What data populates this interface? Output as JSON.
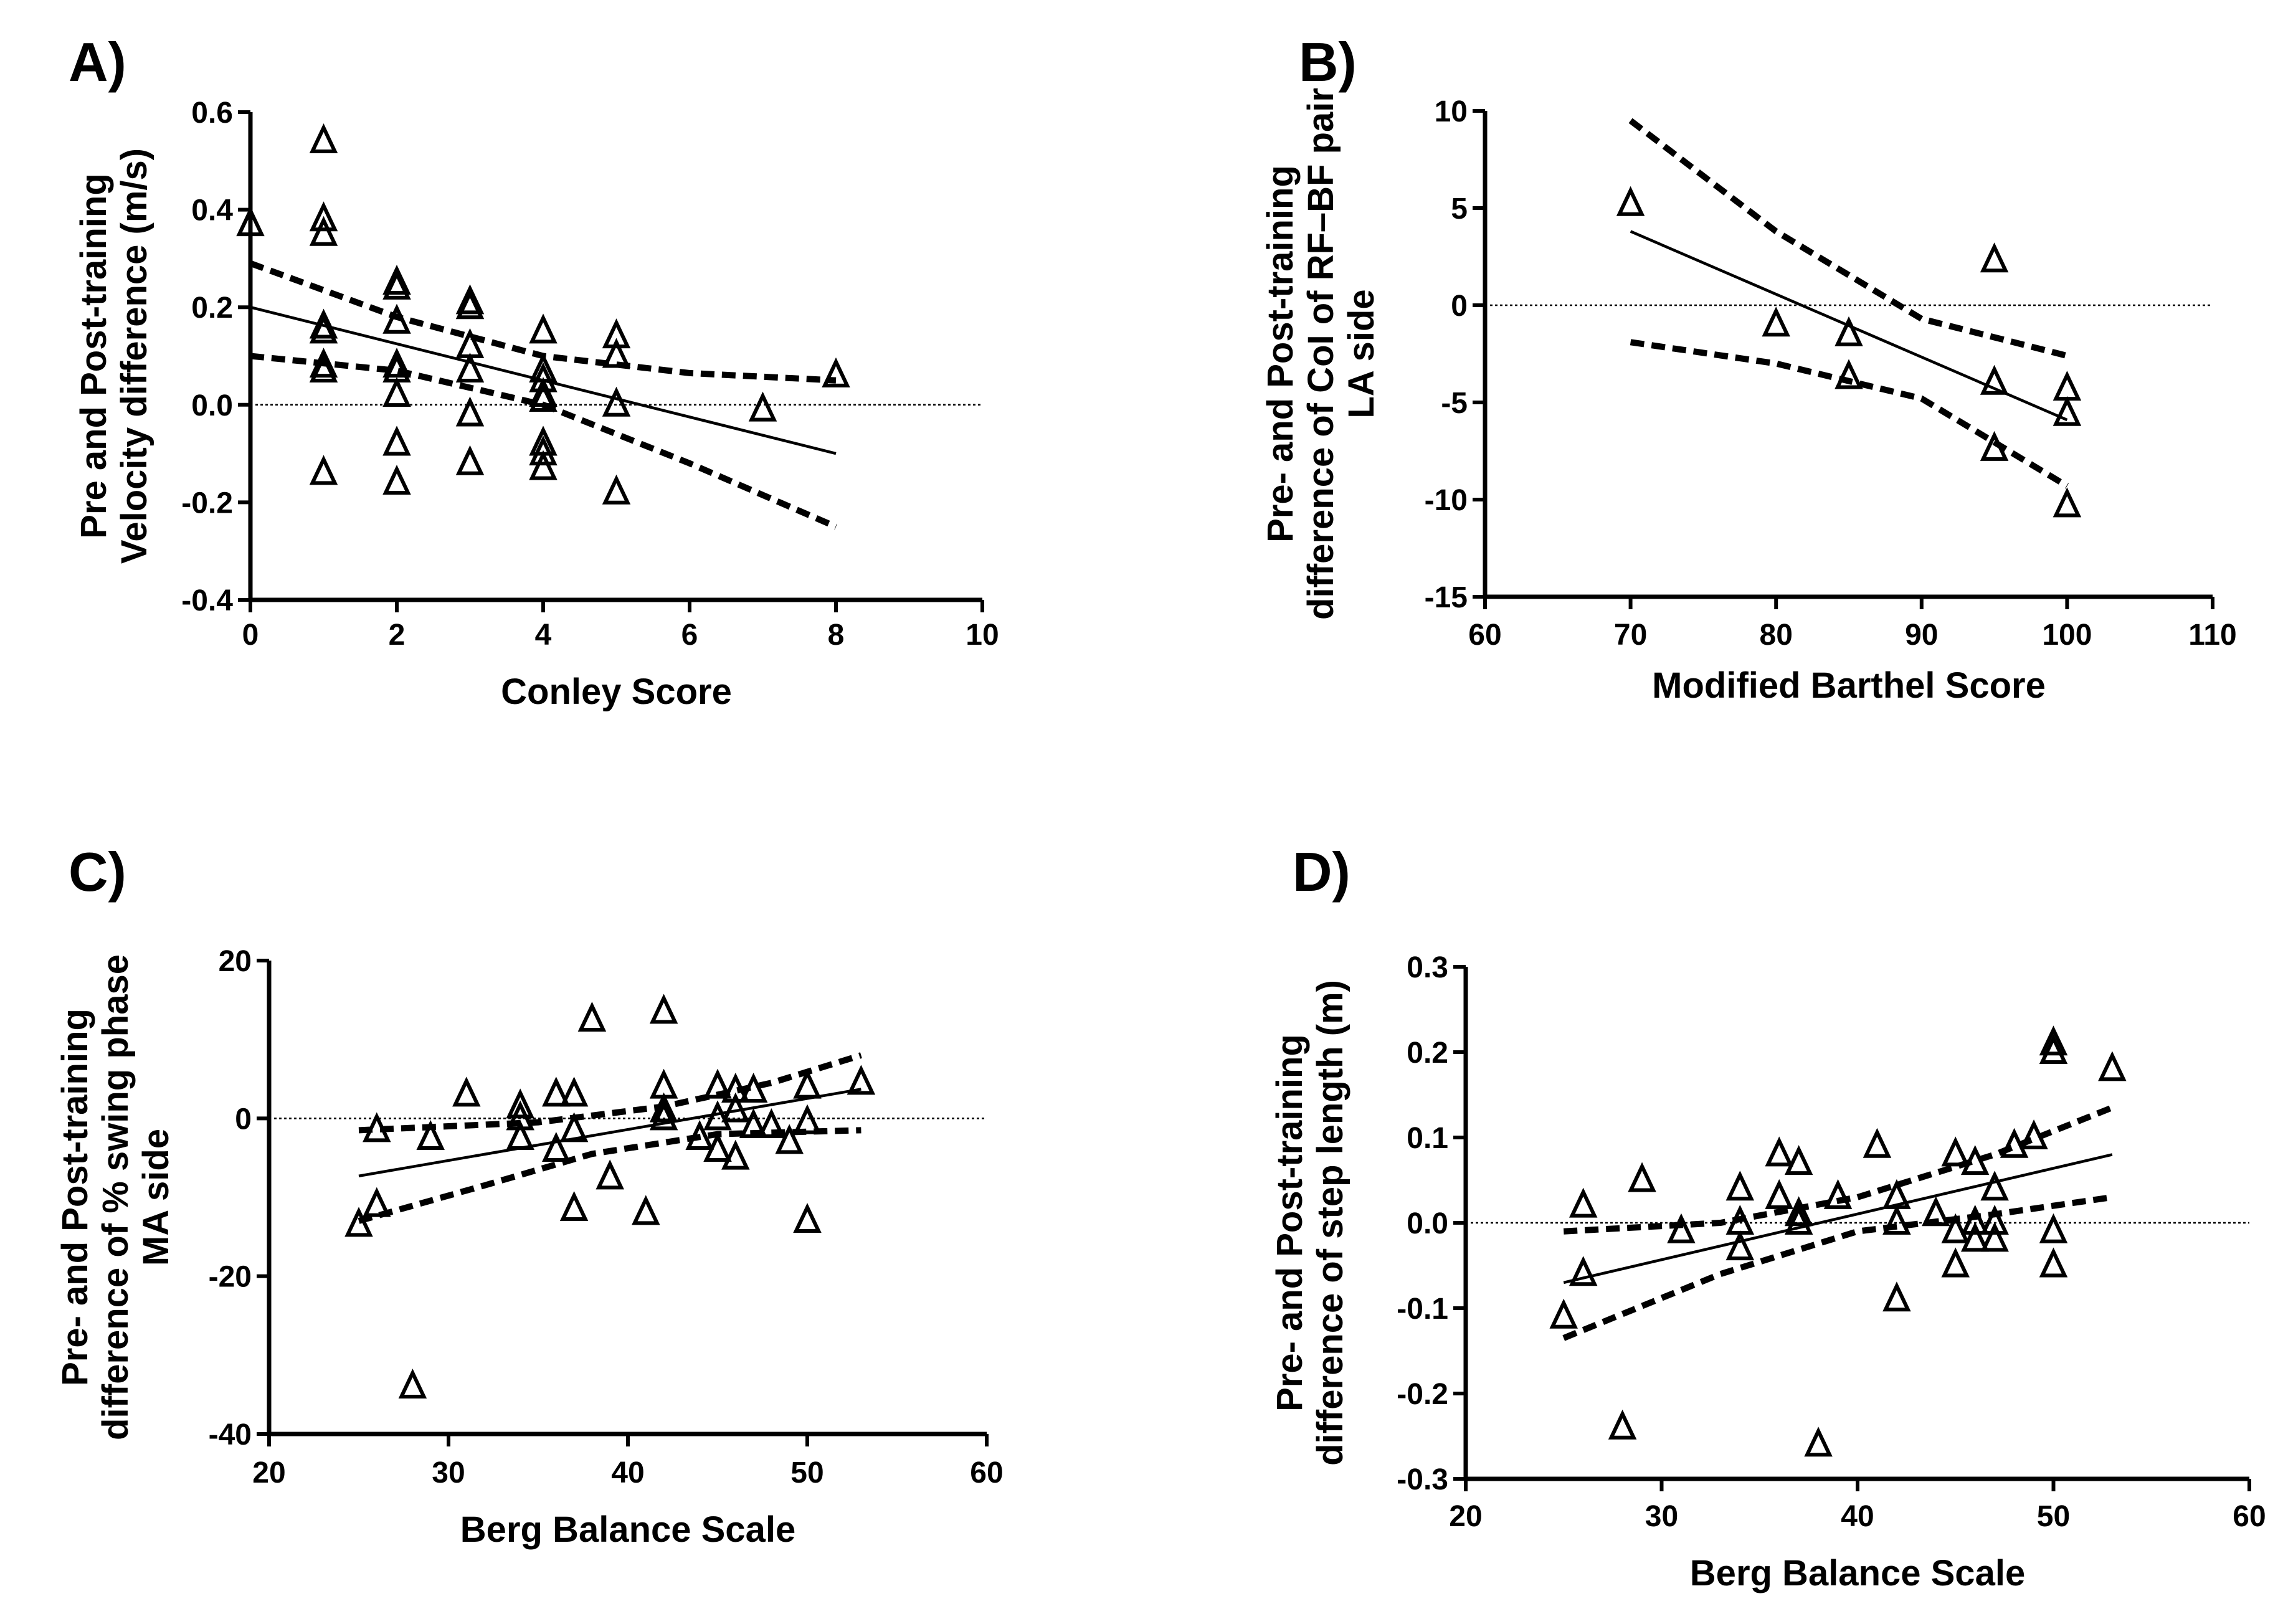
{
  "chart_data": [
    {
      "type": "scatter",
      "panel_label": "A)",
      "xlabel": "Conley Score",
      "ylabel": [
        "Pre and Post-training",
        "Velocity difference (m/s)"
      ],
      "xlim": [
        0,
        10
      ],
      "ylim": [
        -0.4,
        0.6
      ],
      "xticks": [
        0,
        2,
        4,
        6,
        8,
        10
      ],
      "yticks": [
        -0.4,
        -0.2,
        0.0,
        0.2,
        0.4,
        0.6
      ],
      "ytick_labels": [
        "-0.4",
        "-0.2",
        "0.0",
        "0.2",
        "0.4",
        "0.6"
      ],
      "reference_line_y": 0,
      "points": [
        [
          0,
          0.37
        ],
        [
          1,
          0.54
        ],
        [
          1,
          0.38
        ],
        [
          1,
          0.35
        ],
        [
          1,
          0.16
        ],
        [
          1,
          0.15
        ],
        [
          1,
          0.08
        ],
        [
          1,
          0.07
        ],
        [
          1,
          -0.14
        ],
        [
          2,
          0.25
        ],
        [
          2,
          0.24
        ],
        [
          2,
          0.17
        ],
        [
          2,
          0.08
        ],
        [
          2,
          0.07
        ],
        [
          2,
          0.02
        ],
        [
          2,
          -0.08
        ],
        [
          2,
          -0.16
        ],
        [
          3,
          0.21
        ],
        [
          3,
          0.2
        ],
        [
          3,
          0.12
        ],
        [
          3,
          0.07
        ],
        [
          3,
          -0.02
        ],
        [
          3,
          -0.12
        ],
        [
          4,
          0.15
        ],
        [
          4,
          0.07
        ],
        [
          4,
          0.05
        ],
        [
          4,
          0.02
        ],
        [
          4,
          0.01
        ],
        [
          4,
          -0.08
        ],
        [
          4,
          -0.1
        ],
        [
          4,
          -0.13
        ],
        [
          5,
          0.14
        ],
        [
          5,
          0.1
        ],
        [
          5,
          0.0
        ],
        [
          5,
          -0.18
        ],
        [
          7,
          -0.01
        ],
        [
          8,
          0.06
        ]
      ],
      "fit": [
        [
          0,
          0.2
        ],
        [
          8,
          -0.1
        ]
      ],
      "ci_upper": [
        [
          0,
          0.29
        ],
        [
          2,
          0.18
        ],
        [
          4,
          0.1
        ],
        [
          6,
          0.065
        ],
        [
          8,
          0.05
        ]
      ],
      "ci_lower": [
        [
          0,
          0.1
        ],
        [
          2,
          0.07
        ],
        [
          4,
          0.0
        ],
        [
          6,
          -0.12
        ],
        [
          8,
          -0.25
        ]
      ]
    },
    {
      "type": "scatter",
      "panel_label": "B)",
      "xlabel": "Modified Barthel Score",
      "ylabel": [
        "Pre- and Post-training",
        "difference of CoI of RF–BF pair",
        "LA side"
      ],
      "xlim": [
        60,
        110
      ],
      "ylim": [
        -15,
        10
      ],
      "xticks": [
        60,
        70,
        80,
        90,
        100,
        110
      ],
      "yticks": [
        -15,
        -10,
        -5,
        0,
        5,
        10
      ],
      "ytick_labels": [
        "-15",
        "-10",
        "-5",
        "0",
        "5",
        "10"
      ],
      "reference_line_y": 0,
      "points": [
        [
          70,
          5.2
        ],
        [
          80,
          -1.0
        ],
        [
          85,
          -1.5
        ],
        [
          85,
          -3.7
        ],
        [
          95,
          2.3
        ],
        [
          95,
          -4.0
        ],
        [
          95,
          -7.4
        ],
        [
          100,
          -4.3
        ],
        [
          100,
          -5.6
        ],
        [
          100,
          -10.3
        ]
      ],
      "fit": [
        [
          70,
          3.8
        ],
        [
          100,
          -5.9
        ]
      ],
      "ci_upper": [
        [
          70,
          9.5
        ],
        [
          80,
          3.8
        ],
        [
          90,
          -0.7
        ],
        [
          100,
          -2.6
        ]
      ],
      "ci_lower": [
        [
          70,
          -1.9
        ],
        [
          80,
          -3.0
        ],
        [
          90,
          -4.8
        ],
        [
          100,
          -9.3
        ]
      ]
    },
    {
      "type": "scatter",
      "panel_label": "C)",
      "xlabel": "Berg Balance Scale",
      "ylabel": [
        "Pre- and Post-training",
        "difference of % swing phase",
        "MA side"
      ],
      "xlim": [
        20,
        60
      ],
      "ylim": [
        -40,
        20
      ],
      "xticks": [
        20,
        30,
        40,
        50,
        60
      ],
      "yticks": [
        -40,
        -20,
        0,
        20
      ],
      "ytick_labels": [
        "-40",
        "-20",
        "0",
        "20"
      ],
      "reference_line_y": 0,
      "points": [
        [
          25,
          -13.5
        ],
        [
          26,
          -1.5
        ],
        [
          26,
          -11
        ],
        [
          28,
          -34
        ],
        [
          29,
          -2.5
        ],
        [
          31,
          3
        ],
        [
          34,
          1.5
        ],
        [
          34,
          0
        ],
        [
          34,
          -2.5
        ],
        [
          36,
          3
        ],
        [
          36,
          -4
        ],
        [
          37,
          3
        ],
        [
          37,
          -1.5
        ],
        [
          37,
          -11.5
        ],
        [
          38,
          12.5
        ],
        [
          39,
          -7.5
        ],
        [
          41,
          -12
        ],
        [
          42,
          13.5
        ],
        [
          42,
          4
        ],
        [
          42,
          1
        ],
        [
          42,
          0
        ],
        [
          44,
          -2.5
        ],
        [
          45,
          4
        ],
        [
          45,
          0
        ],
        [
          45,
          -4
        ],
        [
          46,
          3.5
        ],
        [
          46,
          1
        ],
        [
          46,
          -5
        ],
        [
          47,
          3.5
        ],
        [
          47,
          -1
        ],
        [
          48,
          -1
        ],
        [
          49,
          -3
        ],
        [
          50,
          4
        ],
        [
          50,
          -0.5
        ],
        [
          50,
          -13
        ],
        [
          53,
          4.5
        ]
      ],
      "fit": [
        [
          25,
          -7.3
        ],
        [
          53,
          3.7
        ]
      ],
      "ci_upper": [
        [
          25,
          -1.5
        ],
        [
          35,
          -0.5
        ],
        [
          42,
          1.5
        ],
        [
          48,
          4.5
        ],
        [
          53,
          8
        ]
      ],
      "ci_lower": [
        [
          25,
          -13
        ],
        [
          32,
          -8.5
        ],
        [
          38,
          -4.5
        ],
        [
          45,
          -2
        ],
        [
          53,
          -1.5
        ]
      ]
    },
    {
      "type": "scatter",
      "panel_label": "D)",
      "xlabel": "Berg Balance Scale",
      "ylabel": [
        "Pre- and Post-training",
        "difference of step length (m)"
      ],
      "xlim": [
        20,
        60
      ],
      "ylim": [
        -0.3,
        0.3
      ],
      "xticks": [
        20,
        30,
        40,
        50,
        60
      ],
      "yticks": [
        -0.3,
        -0.2,
        -0.1,
        0.0,
        0.1,
        0.2,
        0.3
      ],
      "ytick_labels": [
        "-0.3",
        "-0.2",
        "-0.1",
        "0.0",
        "0.1",
        "0.2",
        "0.3"
      ],
      "reference_line_y": 0,
      "points": [
        [
          25,
          -0.11
        ],
        [
          26,
          0.02
        ],
        [
          26,
          -0.06
        ],
        [
          28,
          -0.24
        ],
        [
          29,
          0.05
        ],
        [
          31,
          -0.01
        ],
        [
          34,
          0.04
        ],
        [
          34,
          0.0
        ],
        [
          34,
          -0.03
        ],
        [
          36,
          0.08
        ],
        [
          36,
          0.03
        ],
        [
          37,
          0.07
        ],
        [
          37,
          0.01
        ],
        [
          37,
          0.0
        ],
        [
          38,
          -0.26
        ],
        [
          39,
          0.03
        ],
        [
          41,
          0.09
        ],
        [
          42,
          0.03
        ],
        [
          42,
          0.0
        ],
        [
          42,
          -0.09
        ],
        [
          44,
          0.01
        ],
        [
          45,
          0.08
        ],
        [
          45,
          -0.01
        ],
        [
          45,
          -0.05
        ],
        [
          46,
          0.07
        ],
        [
          46,
          0.0
        ],
        [
          46,
          -0.02
        ],
        [
          47,
          0.04
        ],
        [
          47,
          0.0
        ],
        [
          47,
          -0.02
        ],
        [
          48,
          0.09
        ],
        [
          49,
          0.1
        ],
        [
          50,
          0.21
        ],
        [
          50,
          0.2
        ],
        [
          50,
          -0.01
        ],
        [
          50,
          -0.05
        ],
        [
          53,
          0.18
        ]
      ],
      "fit": [
        [
          25,
          -0.07
        ],
        [
          53,
          0.08
        ]
      ],
      "ci_upper": [
        [
          25,
          -0.01
        ],
        [
          33,
          0.0
        ],
        [
          40,
          0.03
        ],
        [
          47,
          0.08
        ],
        [
          53,
          0.135
        ]
      ],
      "ci_lower": [
        [
          25,
          -0.135
        ],
        [
          33,
          -0.06
        ],
        [
          40,
          -0.01
        ],
        [
          47,
          0.01
        ],
        [
          53,
          0.03
        ]
      ]
    }
  ]
}
